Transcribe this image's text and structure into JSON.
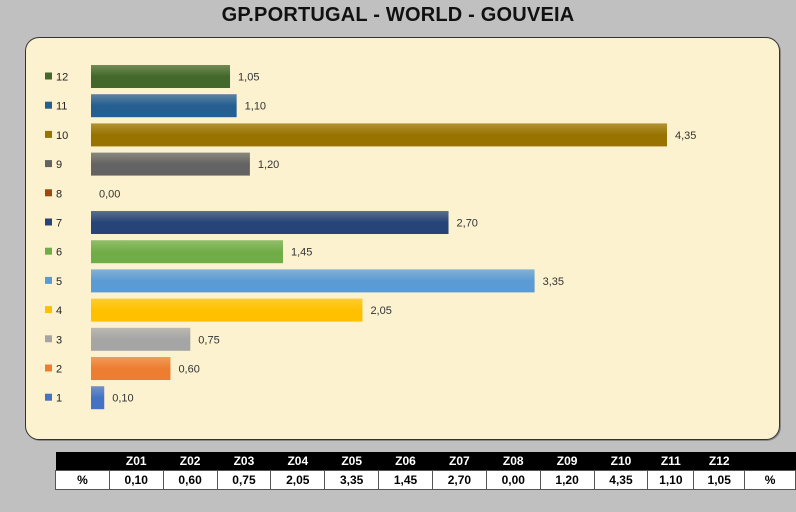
{
  "title": "GP.PORTUGAL - WORLD - GOUVEIA",
  "chart_data": {
    "type": "bar",
    "orientation": "horizontal",
    "categories": [
      "1",
      "2",
      "3",
      "4",
      "5",
      "6",
      "7",
      "8",
      "9",
      "10",
      "11",
      "12"
    ],
    "values": [
      0.1,
      0.6,
      0.75,
      2.05,
      3.35,
      1.45,
      2.7,
      0.0,
      1.2,
      4.35,
      1.1,
      1.05
    ],
    "labels": [
      "0,10",
      "0,60",
      "0,75",
      "2,05",
      "3,35",
      "1,45",
      "2,70",
      "0,00",
      "1,20",
      "4,35",
      "1,10",
      "1,05"
    ],
    "colors": [
      "#4472c4",
      "#ed7d31",
      "#a5a5a5",
      "#ffc000",
      "#5b9bd5",
      "#70ad47",
      "#264478",
      "#9e480e",
      "#636363",
      "#997300",
      "#255e91",
      "#43682b"
    ],
    "xlim": [
      0,
      4.35
    ],
    "legend": "left"
  },
  "table": {
    "headers": [
      "",
      "Z01",
      "Z02",
      "Z03",
      "Z04",
      "Z05",
      "Z06",
      "Z07",
      "Z08",
      "Z09",
      "Z10",
      "Z11",
      "Z12",
      ""
    ],
    "row": [
      "%",
      "0,10",
      "0,60",
      "0,75",
      "2,05",
      "3,35",
      "1,45",
      "2,70",
      "0,00",
      "1,20",
      "4,35",
      "1,10",
      "1,05",
      "%"
    ]
  }
}
